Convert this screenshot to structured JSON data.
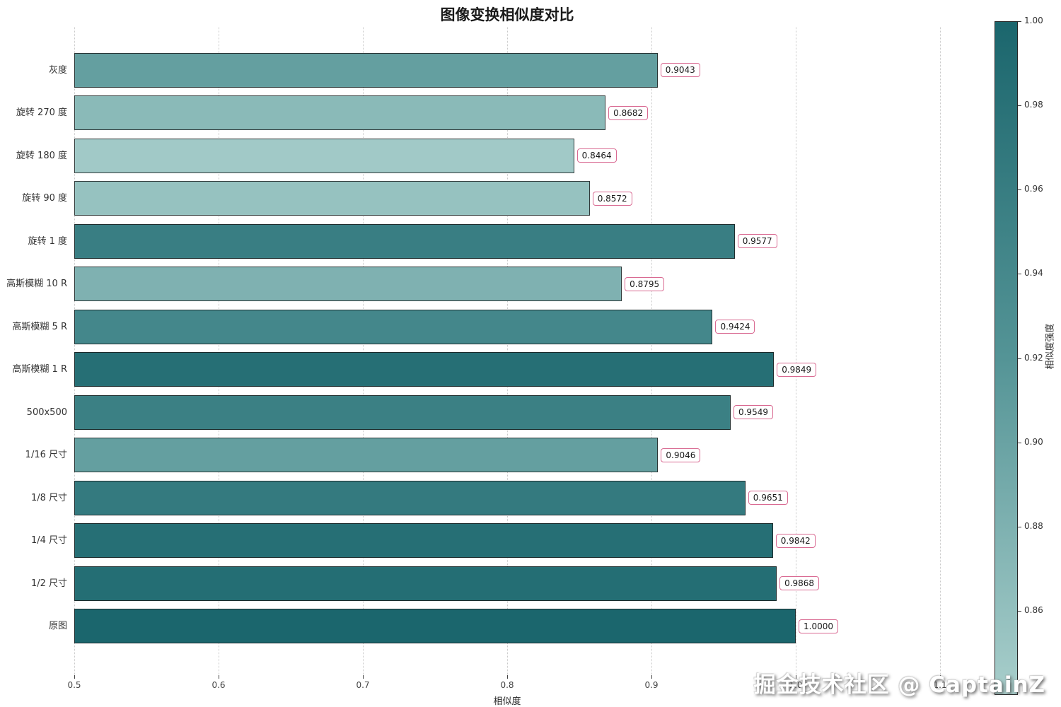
{
  "title": "图像变换相似度对比",
  "watermark": "掘金技术社区 @ CaptainZ",
  "colorbar": {
    "label": "相似度强度",
    "vmin": 0.84,
    "vmax": 1.0,
    "ticks": [
      {
        "value": 1.0,
        "label": "1.00"
      },
      {
        "value": 0.98,
        "label": "0.98"
      },
      {
        "value": 0.96,
        "label": "0.96"
      },
      {
        "value": 0.94,
        "label": "0.94"
      },
      {
        "value": 0.92,
        "label": "0.92"
      },
      {
        "value": 0.9,
        "label": "0.90"
      },
      {
        "value": 0.88,
        "label": "0.88"
      },
      {
        "value": 0.86,
        "label": "0.86"
      }
    ]
  },
  "chart_data": {
    "type": "bar",
    "orientation": "horizontal",
    "title": "图像变换相似度对比",
    "xlabel": "相似度",
    "ylabel": "",
    "xlim": [
      0.5,
      1.1
    ],
    "grid": "vertical-dotted",
    "legend": "colorbar-right",
    "categories_top_to_bottom": [
      "灰度",
      "旋转 270 度",
      "旋转 180 度",
      "旋转 90 度",
      "旋转 1 度",
      "高斯模糊 10 R",
      "高斯模糊 5 R",
      "高斯模糊 1 R",
      "500x500",
      "1/16 尺寸",
      "1/8 尺寸",
      "1/4 尺寸",
      "1/2 尺寸",
      "原图"
    ],
    "values": [
      0.9043,
      0.8682,
      0.8464,
      0.8572,
      0.9577,
      0.8795,
      0.9424,
      0.9849,
      0.9549,
      0.9046,
      0.9651,
      0.9842,
      0.9868,
      1.0
    ],
    "value_labels": [
      "0.9043",
      "0.8682",
      "0.8464",
      "0.8572",
      "0.9577",
      "0.8795",
      "0.9424",
      "0.9849",
      "0.9549",
      "0.9046",
      "0.9651",
      "0.9842",
      "0.9868",
      "1.0000"
    ],
    "x_ticks": [
      0.5,
      0.6,
      0.7,
      0.8,
      0.9,
      1.0,
      1.1
    ],
    "x_tick_labels": [
      "0.5",
      "0.6",
      "0.7",
      "0.8",
      "0.9",
      "1.0",
      "1.1"
    ],
    "colormap": {
      "stops": [
        [
          0.0,
          "#a8cecb"
        ],
        [
          0.5,
          "#549496"
        ],
        [
          1.0,
          "#1b666d"
        ]
      ]
    },
    "colors": {
      "bar_edge": "rgba(25,25,25,0.8)",
      "label_box_border": "#d96a92",
      "label_box_bg": "#ffffff",
      "grid": "#c9c9c9",
      "text": "#262626"
    }
  }
}
